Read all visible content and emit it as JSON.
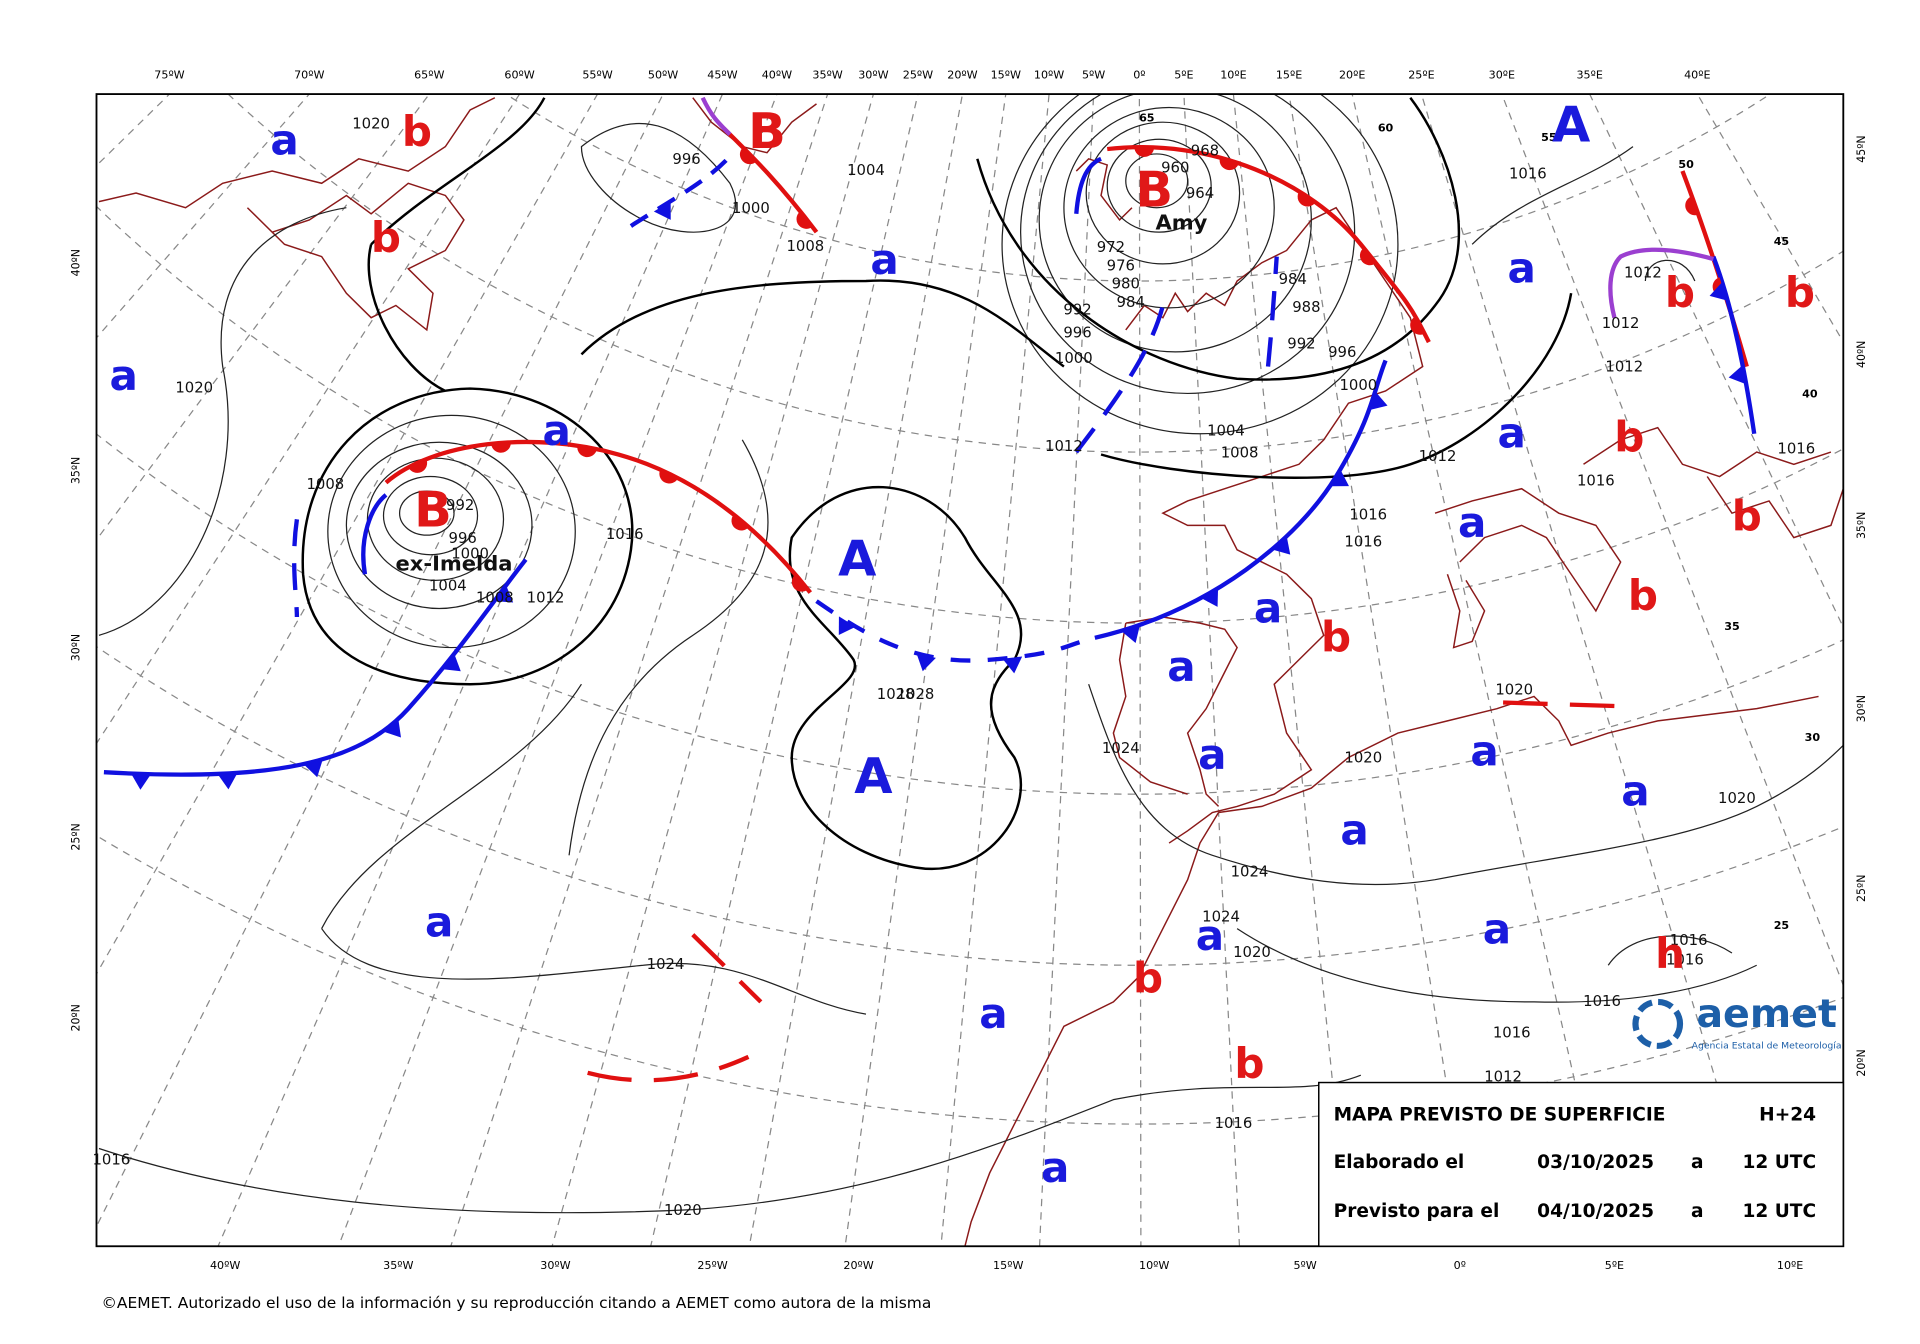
{
  "header_lon_labels": [
    "75ºW",
    "70ºW",
    "65ºW",
    "60ºW",
    "55ºW",
    "50ºW",
    "45ºW",
    "40ºW",
    "35ºW",
    "30ºW",
    "25ºW",
    "20ºW",
    "15ºW",
    "10ºW",
    "5ºW",
    "0º",
    "5ºE",
    "10ºE",
    "15ºE",
    "20ºE",
    "25ºE",
    "30ºE",
    "35ºE",
    "40ºE"
  ],
  "footer_lon_labels": [
    "40ºW",
    "35ºW",
    "30ºW",
    "25ºW",
    "20ºW",
    "15ºW",
    "10ºW",
    "5ºW",
    "0º",
    "5ºE",
    "10ºE"
  ],
  "left_lat_labels": [
    "40ºN",
    "35ºN",
    "30ºN",
    "25ºN",
    "20ºN"
  ],
  "right_lat_labels": [
    "45ºN",
    "40ºN",
    "35ºN",
    "30ºN",
    "25ºN",
    "20ºN"
  ],
  "symbols": [
    "A",
    "A",
    "A",
    "B",
    "B",
    "B",
    "a",
    "a",
    "a",
    "a",
    "a",
    "a",
    "a",
    "a",
    "a",
    "a",
    "a",
    "a",
    "a",
    "a",
    "a",
    "a",
    "a",
    "a",
    "b",
    "b",
    "b",
    "b",
    "b",
    "b",
    "b",
    "b",
    "b",
    "b",
    "h"
  ],
  "storm_names": [
    "ex-Imelda",
    "Amy"
  ],
  "isobar_labels": [
    "1020",
    "1020",
    "1008",
    "992",
    "996",
    "1000",
    "1004",
    "1008",
    "1012",
    "1016",
    "996",
    "1000",
    "1008",
    "1004",
    "1028",
    "1028",
    "1024",
    "1024",
    "1024",
    "1020",
    "1020",
    "1020",
    "1020",
    "1016",
    "1016",
    "1016",
    "1016",
    "1016",
    "1016",
    "1016",
    "1016",
    "1016",
    "1012",
    "1012",
    "1012",
    "1012",
    "1012",
    "1016",
    "1020",
    "1024",
    "1016",
    "996",
    "992",
    "988",
    "984",
    "1000",
    "1004",
    "1008",
    "968",
    "964",
    "960",
    "972",
    "976",
    "980",
    "984",
    "992",
    "996",
    "1000",
    "1012"
  ],
  "latitude_marks": [
    "65",
    "60",
    "55",
    "50",
    "45",
    "40",
    "35",
    "30",
    "25"
  ],
  "info_box": {
    "title": "MAPA PREVISTO DE SUPERFICIE",
    "lead_time": "H+24",
    "rows": [
      [
        "Elaborado el",
        "03/10/2025",
        "a",
        "12 UTC"
      ],
      [
        "Previsto para el",
        "04/10/2025",
        "a",
        "12 UTC"
      ]
    ]
  },
  "logo": {
    "name": "aemet",
    "subtitle": "Agencia Estatal de Meteorología"
  },
  "copyright": "©AEMET. Autorizado el uso de la información y su reproducción citando a AEMET como autora de la misma"
}
